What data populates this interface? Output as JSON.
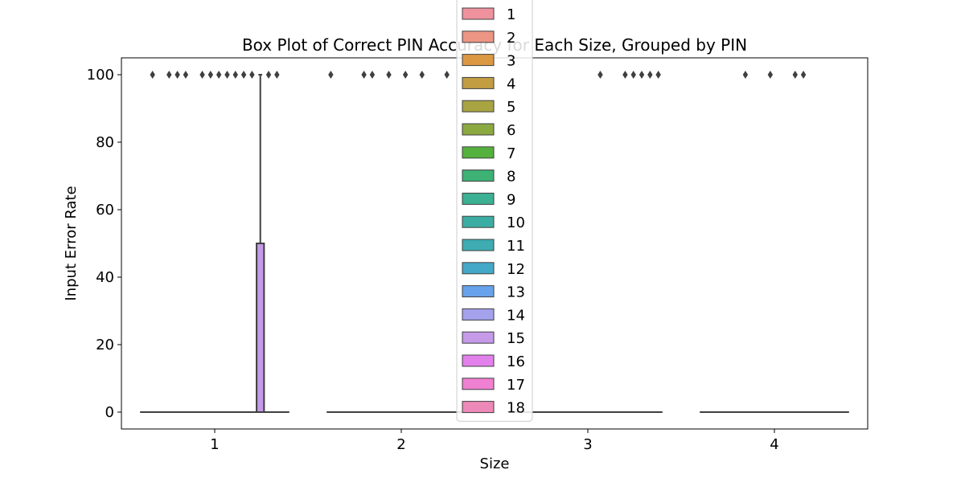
{
  "chart_data": {
    "type": "box",
    "title": "Box Plot of Correct PIN Accuracy for Each Size, Grouped by PIN",
    "xlabel": "Size",
    "ylabel": "Input Error Rate",
    "categories": [
      "1",
      "2",
      "3",
      "4"
    ],
    "ylim": [
      -5,
      105
    ],
    "yticks": [
      0,
      20,
      40,
      60,
      80,
      100
    ],
    "grid": false,
    "legend_position": "top-center",
    "hue_levels": [
      "1",
      "2",
      "3",
      "4",
      "5",
      "6",
      "7",
      "8",
      "9",
      "10",
      "11",
      "12",
      "13",
      "14",
      "15",
      "16",
      "17",
      "18"
    ],
    "hue_colors": [
      "#f0929e",
      "#ec9584",
      "#db9843",
      "#c29d41",
      "#a8a442",
      "#8ba941",
      "#55b13e",
      "#3db274",
      "#3bb092",
      "#3cada3",
      "#3eacb2",
      "#44a8c8",
      "#67a2ea",
      "#a4a2ec",
      "#c49ae9",
      "#e381ec",
      "#f080d1",
      "#ed89b8"
    ],
    "groups": [
      {
        "category": "1",
        "boxes": [
          {
            "hue": "15",
            "q1": 0,
            "median": 0,
            "q3": 50,
            "whisker_low": 0,
            "whisker_high": 100
          }
        ],
        "outlier_hues": [
          "2",
          "4",
          "5",
          "6",
          "8",
          "9",
          "10",
          "11",
          "12",
          "13",
          "14",
          "16",
          "17"
        ],
        "outlier_value": 100
      },
      {
        "category": "2",
        "boxes": [],
        "outlier_hues": [
          "1",
          "5",
          "6",
          "8",
          "10",
          "12",
          "15"
        ],
        "outlier_value": 100
      },
      {
        "category": "3",
        "boxes": [],
        "outlier_hues": [
          "11",
          "14",
          "15",
          "16",
          "17",
          "18"
        ],
        "outlier_value": 100
      },
      {
        "category": "4",
        "boxes": [],
        "outlier_hues": [
          "6",
          "9",
          "12",
          "13"
        ],
        "outlier_value": 100
      }
    ],
    "baseline_value": 0
  }
}
